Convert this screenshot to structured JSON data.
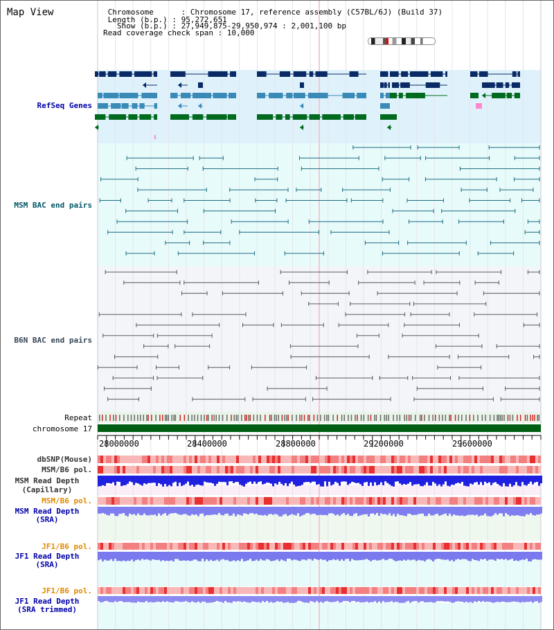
{
  "header": {
    "title": "Map View",
    "info_lines": [
      " Chromosome      : Chromosome 17, reference assembly (C57BL/6J) (Build 37)",
      " Length (b.p.) : 95,272,651",
      "   Show (b.p.) : 27,949,875-29,950,974 : 2,001,100 bp",
      "Read coverage check span : 10,000"
    ]
  },
  "tracks": {
    "refseq": {
      "label": "RefSeq Genes",
      "color": "#0000aa"
    },
    "msm_bac": {
      "label": "MSM BAC end pairs",
      "color": "#005566"
    },
    "b6n_bac": {
      "label": "B6N BAC end pairs",
      "color": "#334455"
    },
    "repeat": {
      "label": "Repeat"
    },
    "chromosome": {
      "label": "chromosome 17"
    },
    "dbsnp": {
      "label": "dbSNP(Mouse)"
    },
    "msm_b6_pol": {
      "label": "MSM/B6 pol."
    },
    "msm_depth_cap": {
      "label_lines": [
        "MSM Read Depth",
        "(Capillary)"
      ]
    },
    "msm_b6_pol_sra": {
      "label": "MSM/B6 pol.",
      "color": "#e08a00"
    },
    "msm_depth_sra": {
      "label_lines": [
        "MSM Read Depth",
        "(SRA)"
      ],
      "color": "#0000aa"
    },
    "jf1_b6_pol": {
      "label": "JF1/B6 pol.",
      "color": "#e08a00"
    },
    "jf1_depth_sra": {
      "label_lines": [
        "JF1 Read Depth",
        "(SRA)"
      ],
      "color": "#0000aa"
    },
    "jf1_b6_pol2": {
      "label": "JF1/B6 pol.",
      "color": "#e08a00"
    },
    "jf1_depth_trim": {
      "label_lines": [
        "JF1 Read Depth",
        "(SRA trimmed)"
      ],
      "color": "#0000aa"
    }
  },
  "axis": {
    "ticks": [
      "28000000",
      "28400000",
      "28800000",
      "29200000",
      "29600000"
    ]
  }
}
